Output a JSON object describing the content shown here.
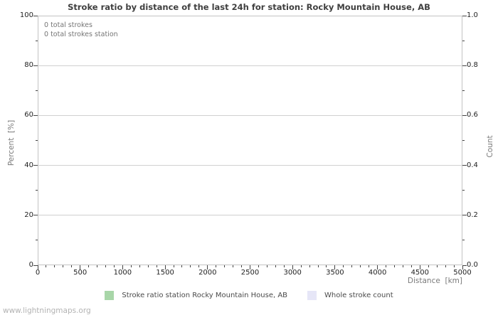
{
  "title": "Stroke ratio by distance of the last 24h for station: Rocky Mountain House, AB",
  "watermark": "www.lightningmaps.org",
  "chart_data": {
    "type": "line",
    "title": "Stroke ratio by distance of the last 24h for station: Rocky Mountain House, AB",
    "annotations": [
      "0 total strokes",
      "0 total strokes station"
    ],
    "x_axis": {
      "label": "Distance  [km]",
      "min": 0,
      "max": 5000,
      "major_tick_step": 500,
      "minor_tick_step": 100,
      "tick_labels": [
        "0",
        "500",
        "1000",
        "1500",
        "2000",
        "2500",
        "3000",
        "3500",
        "4000",
        "4500",
        "5000"
      ]
    },
    "y_axis_left": {
      "label": "Percent  [%]",
      "min": 0,
      "max": 100,
      "major_tick_step": 20,
      "minor_tick_step": 10,
      "tick_labels": [
        "0",
        "20",
        "40",
        "60",
        "80",
        "100"
      ]
    },
    "y_axis_right": {
      "label": "Count",
      "min": 0,
      "max": 1,
      "major_tick_step": 0.2,
      "minor_tick_step": 0.1,
      "tick_labels": [
        "0.0",
        "0.2",
        "0.4",
        "0.6",
        "0.8",
        "1.0"
      ]
    },
    "grid": "horizontal-only",
    "legend_position": "bottom",
    "series": [
      {
        "name": "Stroke ratio station Rocky Mountain House, AB",
        "color": "#a8d6a8",
        "values": []
      },
      {
        "name": "Whole stroke count",
        "color": "#e6e6f7",
        "values": []
      }
    ]
  },
  "colors": {
    "background": "#ffffff",
    "title": "#3f3f3f",
    "frame": "#c3c3c3",
    "grid": "#d0d0d0",
    "tick": "#444444",
    "tick_label": "#1f1f1f",
    "axis_label": "#7a7a7a",
    "annotation": "#757575",
    "legend_text": "#4a4a4a",
    "watermark": "#b3b3b3"
  }
}
